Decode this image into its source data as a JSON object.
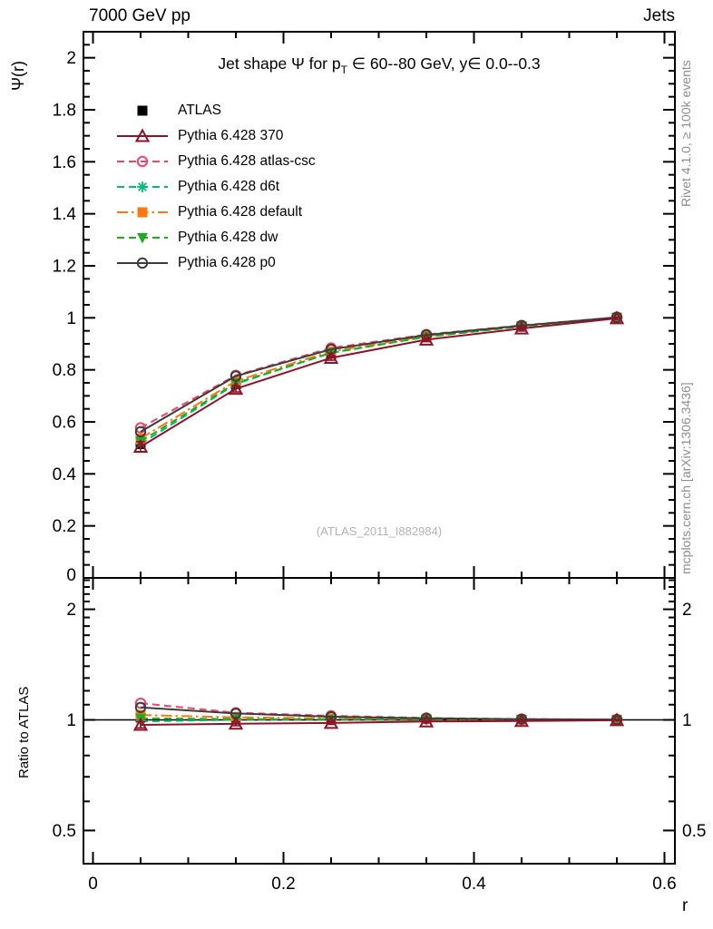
{
  "header": {
    "left_label": "7000 GeV pp",
    "right_label": "Jets"
  },
  "title": {
    "pre": "Jet shape Ψ for p",
    "sub": "T",
    "post": " ∈ 60--80 GeV, y∈ 0.0--0.3"
  },
  "watermark": "(ATLAS_2011_I882984)",
  "side_notes": {
    "top_rotated": "Rivet 4.1.0, ≥ 100k events",
    "bottom_rotated": "mcplots.cern.ch [arXiv:1306.3436]"
  },
  "colors": {
    "frame": "#000000",
    "note_gray": "#8c8c8c",
    "watermark_gray": "#b3b3b3"
  },
  "chart_data": {
    "type": "line",
    "title": "Jet shape Ψ for pT ∈ 60--80 GeV, y∈ 0.0--0.3",
    "xlabel": "r",
    "main_ylabel": "Ψ(r)",
    "ratio_ylabel": "Ratio to ATLAS",
    "legend_position": "top-left",
    "grid": "off",
    "x": [
      0.05,
      0.15,
      0.25,
      0.35,
      0.45,
      0.55
    ],
    "x_range": [
      -0.01,
      0.611
    ],
    "main_ylim": [
      0,
      2.1
    ],
    "main_y_scale": "linear",
    "ratio_ylim": [
      0.404,
      2.43
    ],
    "ratio_y_scale": "log",
    "ratio_unity_line": 1,
    "x_major_ticks": [
      0,
      0.2,
      0.4,
      0.6
    ],
    "x_major_tick_labels": [
      "0",
      "0.2",
      "0.4",
      "0.6"
    ],
    "x_minor_step": 0.05,
    "main_y_major_ticks": [
      0.2,
      0.4,
      0.6,
      0.8,
      1.0,
      1.2,
      1.4,
      1.6,
      1.8,
      2.0
    ],
    "main_y_major_tick_labels": [
      "0.2",
      "0.4",
      "0.6",
      "0.8",
      "1",
      "1.2",
      "1.4",
      "1.6",
      "1.8",
      "2"
    ],
    "main_y_minor_step": 0.05,
    "ratio_y_major_ticks": [
      0.5,
      1,
      2
    ],
    "ratio_y_major_tick_labels": [
      "0.5",
      "1",
      "2"
    ],
    "ratio_y_minor_ticks": [
      0.6,
      0.7,
      0.8,
      0.9,
      1.1,
      1.2,
      1.3,
      1.4,
      1.5,
      1.6,
      1.7,
      1.8,
      1.9,
      2.1,
      2.2,
      2.3,
      2.4
    ],
    "series": [
      {
        "name": "ATLAS",
        "kind": "data",
        "color": "#000000",
        "marker": "square-filled",
        "line": "none",
        "values": [
          0.52,
          0.745,
          0.862,
          0.925,
          0.966,
          1.0
        ],
        "value_errors": [
          0.022,
          0.012,
          0.008,
          0.005,
          0.004,
          0.003
        ]
      },
      {
        "name": "Pythia 6.428 370",
        "kind": "mc",
        "color": "#8f1228",
        "marker": "triangle-open",
        "line": "solid",
        "values": [
          0.504,
          0.727,
          0.846,
          0.916,
          0.959,
          0.998
        ],
        "value_errors": [
          0.02,
          0.012,
          0.009,
          0.006,
          0.005,
          0.004
        ],
        "ratio": [
          0.969,
          0.976,
          0.981,
          0.99,
          0.993,
          0.998
        ],
        "ratio_errors": [
          0.018,
          0.012,
          0.009,
          0.006,
          0.005,
          0.004
        ]
      },
      {
        "name": "Pythia 6.428 atlas-csc",
        "kind": "mc",
        "color": "#ee4466",
        "marker": "circle-open",
        "line": "dashed",
        "values": [
          0.577,
          0.779,
          0.884,
          0.936,
          0.971,
          1.002
        ],
        "ratio": [
          1.11,
          1.046,
          1.026,
          1.012,
          1.005,
          1.002
        ]
      },
      {
        "name": "Pythia 6.428 d6t",
        "kind": "mc",
        "color": "#00bb77",
        "marker": "asterisk",
        "line": "dashed",
        "values": [
          0.515,
          0.746,
          0.866,
          0.927,
          0.967,
          1.001
        ],
        "ratio": [
          0.99,
          1.001,
          1.005,
          1.002,
          1.001,
          1.001
        ]
      },
      {
        "name": "Pythia 6.428 default",
        "kind": "mc",
        "color": "#ff7711",
        "marker": "square-filled",
        "line": "dashdot",
        "values": [
          0.536,
          0.757,
          0.871,
          0.93,
          0.968,
          1.001
        ],
        "ratio": [
          1.031,
          1.016,
          1.01,
          1.005,
          1.002,
          1.001
        ]
      },
      {
        "name": "Pythia 6.428 dw",
        "kind": "mc",
        "color": "#22aa22",
        "marker": "triangle-down-filled",
        "line": "dashed",
        "values": [
          0.525,
          0.749,
          0.865,
          0.927,
          0.967,
          1.0
        ],
        "ratio": [
          1.01,
          1.005,
          1.003,
          1.002,
          1.001,
          1.0
        ]
      },
      {
        "name": "Pythia 6.428 p0",
        "kind": "mc",
        "color": "#3c3c3c",
        "marker": "circle-open",
        "line": "solid",
        "values": [
          0.562,
          0.776,
          0.879,
          0.934,
          0.97,
          1.002
        ],
        "ratio": [
          1.081,
          1.041,
          1.02,
          1.01,
          1.004,
          1.002
        ]
      }
    ]
  }
}
